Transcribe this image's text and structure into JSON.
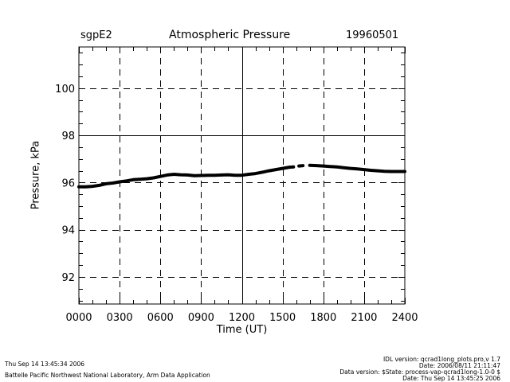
{
  "header": {
    "site": "sgpE2",
    "title": "Atmospheric Pressure",
    "date": "19960501"
  },
  "chart_data": {
    "type": "line",
    "title": "Atmospheric Pressure",
    "xlabel": "Time (UT)",
    "ylabel": "Pressure, kPa",
    "xlim": [
      0,
      2400
    ],
    "ylim": [
      90.85,
      101.75
    ],
    "x_ticks": [
      0,
      300,
      600,
      900,
      1200,
      1500,
      1800,
      2100,
      2400
    ],
    "x_tick_labels": [
      "0000",
      "0300",
      "0600",
      "0900",
      "1200",
      "1500",
      "1800",
      "2100",
      "2400"
    ],
    "y_ticks": [
      92,
      94,
      96,
      98,
      100
    ],
    "y_tick_labels": [
      "92",
      "94",
      "96",
      "98",
      "100"
    ],
    "grid": true,
    "series": [
      {
        "name": "Pressure",
        "x": [
          0,
          50,
          100,
          150,
          200,
          250,
          300,
          350,
          400,
          450,
          500,
          550,
          600,
          650,
          700,
          750,
          800,
          850,
          900,
          950,
          1000,
          1050,
          1100,
          1150,
          1200,
          1250,
          1300,
          1350,
          1400,
          1450,
          1500,
          1550,
          1580,
          null,
          1620,
          1650,
          null,
          1700,
          1750,
          1800,
          1850,
          1900,
          1950,
          2000,
          2050,
          2100,
          2150,
          2200,
          2250,
          2300,
          2350,
          2400
        ],
        "values": [
          95.82,
          95.82,
          95.84,
          95.88,
          95.95,
          95.98,
          96.03,
          96.07,
          96.12,
          96.14,
          96.16,
          96.2,
          96.26,
          96.32,
          96.35,
          96.33,
          96.32,
          96.29,
          96.3,
          96.31,
          96.31,
          96.32,
          96.33,
          96.31,
          96.31,
          96.35,
          96.38,
          96.44,
          96.5,
          96.55,
          96.6,
          96.65,
          96.66,
          null,
          96.7,
          96.72,
          null,
          96.73,
          96.72,
          96.7,
          96.68,
          96.66,
          96.63,
          96.6,
          96.58,
          96.55,
          96.52,
          96.5,
          96.48,
          96.47,
          96.47,
          96.47
        ]
      }
    ]
  },
  "footer": {
    "timestamp": "Thu Sep 14 13:45:34 2006",
    "lab": "Battelle Pacific Northwest National Laboratory, Arm Data Application",
    "idl_version": "IDL version: qcrad1long_plots.pro,v 1.7",
    "idl_date": "Date: 2006/08/11 21:11:47",
    "data_version": "Data version: $State: process-vap-qcrad1long-1.0-0 $",
    "data_date": "Date: Thu Sep 14 13:45:25 2006"
  }
}
